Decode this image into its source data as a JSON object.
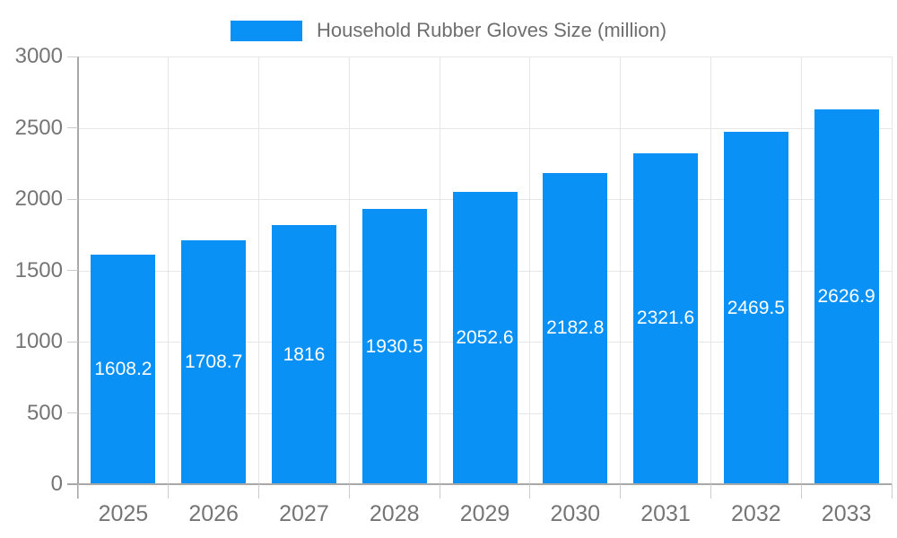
{
  "legend": {
    "label": "Household Rubber Gloves Size (million)"
  },
  "chart_data": {
    "type": "bar",
    "title": "Household Rubber Gloves Size (million)",
    "categories": [
      "2025",
      "2026",
      "2027",
      "2028",
      "2029",
      "2030",
      "2031",
      "2032",
      "2033"
    ],
    "values": [
      1608.2,
      1708.7,
      1816,
      1930.5,
      2052.6,
      2182.8,
      2321.6,
      2469.5,
      2626.9
    ],
    "value_labels": [
      "1608.2",
      "1708.7",
      "1816",
      "1930.5",
      "2052.6",
      "2182.8",
      "2321.6",
      "2469.5",
      "2626.9"
    ],
    "xlabel": "",
    "ylabel": "",
    "ylim": [
      0,
      3000
    ],
    "ytick_interval": 500,
    "ytick_labels": [
      "0",
      "500",
      "1000",
      "1500",
      "2000",
      "2500",
      "3000"
    ],
    "grid": true,
    "legend_position": "top"
  },
  "colors": {
    "bar": "#0991f5",
    "grid": "#e6e6e6",
    "axis": "#a8a8a8",
    "tick": "#cccccc",
    "axis_text": "#757575",
    "legend_text": "#6e6e6e",
    "value_text": "#ffffff",
    "background": "#ffffff"
  }
}
